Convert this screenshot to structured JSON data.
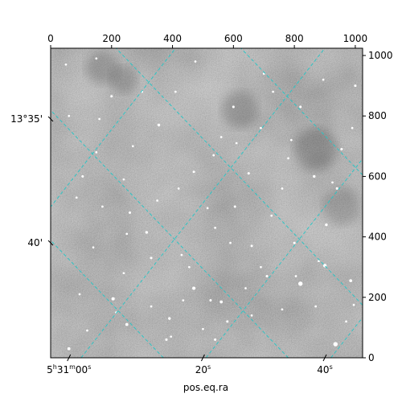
{
  "chart_data": {
    "type": "image",
    "description_free": true,
    "image": {
      "colormap": "gray",
      "background_level": 0.42
    },
    "pixel_axes": {
      "x_range": [
        0,
        1024
      ],
      "y_range": [
        0,
        1024
      ],
      "x_ticks": [
        0,
        200,
        400,
        600,
        800,
        1000
      ],
      "y_ticks": [
        0,
        200,
        400,
        600,
        800,
        1000
      ]
    },
    "world_axes": {
      "xlabel": "pos.eq.ra",
      "ra_ticks": [
        {
          "label": "5h31m00s",
          "h": "5",
          "m": "31",
          "s": "00",
          "x": 60
        },
        {
          "label": "20s",
          "s": "20",
          "x": 500
        },
        {
          "label": "40s",
          "s": "40",
          "x": 900
        }
      ],
      "dec_ticks": [
        {
          "label": "13°35'",
          "y": 790
        },
        {
          "label": "40'",
          "y": 380
        }
      ]
    },
    "grid": {
      "color": "#2ec4c4",
      "style": "dashed",
      "ra_lines_x_at_bottom": [
        -390,
        100,
        510,
        920,
        1330
      ],
      "dec_lines_x_at_bottom": [
        -70,
        370,
        780,
        1190,
        1600
      ],
      "slope_ra": 1.28,
      "slope_dec": -1.05
    },
    "stars": [
      [
        205,
        195,
        1.2
      ],
      [
        250,
        110,
        1.1
      ],
      [
        470,
        230,
        1.2
      ],
      [
        560,
        185,
        1.1
      ],
      [
        820,
        245,
        1.6
      ],
      [
        935,
        45,
        1.6
      ],
      [
        900,
        305,
        1.3
      ],
      [
        580,
        120,
        0.9
      ],
      [
        315,
        415,
        1.0
      ],
      [
        390,
        130,
        1.0
      ],
      [
        660,
        370,
        0.9
      ],
      [
        710,
        270,
        0.9
      ],
      [
        865,
        600,
        1.0
      ],
      [
        330,
        330,
        0.9
      ],
      [
        120,
        90,
        0.8
      ],
      [
        140,
        365,
        0.8
      ],
      [
        725,
        470,
        0.8
      ],
      [
        985,
        255,
        1.1
      ],
      [
        905,
        440,
        1.0
      ],
      [
        605,
        500,
        0.9
      ],
      [
        420,
        560,
        0.8
      ],
      [
        760,
        160,
        0.8
      ],
      [
        240,
        590,
        0.8
      ],
      [
        355,
        770,
        1.0
      ],
      [
        650,
        610,
        0.9
      ],
      [
        515,
        495,
        0.8
      ],
      [
        430,
        340,
        0.8
      ],
      [
        470,
        615,
        0.9
      ],
      [
        200,
        865,
        0.9
      ],
      [
        535,
        670,
        0.8
      ],
      [
        800,
        380,
        0.9
      ],
      [
        260,
        480,
        0.9
      ],
      [
        95,
        210,
        0.8
      ],
      [
        380,
        60,
        0.9
      ],
      [
        540,
        60,
        0.9
      ],
      [
        870,
        170,
        0.8
      ],
      [
        995,
        175,
        0.8
      ],
      [
        700,
        940,
        0.8
      ],
      [
        780,
        660,
        0.8
      ],
      [
        955,
        690,
        0.9
      ],
      [
        160,
        790,
        0.8
      ],
      [
        600,
        830,
        0.9
      ],
      [
        455,
        300,
        0.8
      ],
      [
        820,
        830,
        0.9
      ],
      [
        300,
        880,
        0.8
      ],
      [
        50,
        970,
        0.8
      ],
      [
        895,
        920,
        0.8
      ],
      [
        590,
        380,
        0.8
      ],
      [
        240,
        280,
        0.8
      ],
      [
        350,
        520,
        0.8
      ],
      [
        690,
        760,
        0.8
      ],
      [
        150,
        680,
        0.8
      ],
      [
        525,
        190,
        0.9
      ],
      [
        760,
        560,
        0.8
      ],
      [
        1000,
        900,
        0.9
      ],
      [
        60,
        30,
        1.1
      ],
      [
        410,
        880,
        0.8
      ],
      [
        85,
        530,
        0.8
      ],
      [
        640,
        230,
        0.8
      ],
      [
        880,
        320,
        0.8
      ],
      [
        330,
        170,
        0.8
      ],
      [
        560,
        730,
        0.8
      ],
      [
        940,
        560,
        0.9
      ],
      [
        250,
        410,
        0.8
      ],
      [
        105,
        600,
        0.9
      ],
      [
        690,
        300,
        0.8
      ],
      [
        500,
        95,
        0.8
      ],
      [
        215,
        150,
        0.8
      ],
      [
        730,
        880,
        0.8
      ],
      [
        170,
        500,
        0.8
      ],
      [
        435,
        190,
        0.8
      ],
      [
        805,
        270,
        0.8
      ],
      [
        610,
        710,
        0.8
      ],
      [
        990,
        760,
        0.8
      ],
      [
        270,
        700,
        0.8
      ],
      [
        395,
        70,
        0.8
      ],
      [
        150,
        990,
        0.8
      ],
      [
        540,
        430,
        0.8
      ],
      [
        660,
        140,
        0.8
      ],
      [
        925,
        580,
        0.8
      ],
      [
        475,
        980,
        0.8
      ],
      [
        790,
        720,
        0.8
      ],
      [
        60,
        800,
        0.8
      ],
      [
        970,
        120,
        0.8
      ]
    ],
    "blobs": [
      [
        170,
        960,
        55,
        0.7
      ],
      [
        955,
        500,
        60,
        0.6
      ],
      [
        870,
        690,
        70,
        0.8
      ],
      [
        620,
        820,
        60,
        0.75
      ],
      [
        240,
        920,
        45,
        0.75
      ]
    ]
  }
}
